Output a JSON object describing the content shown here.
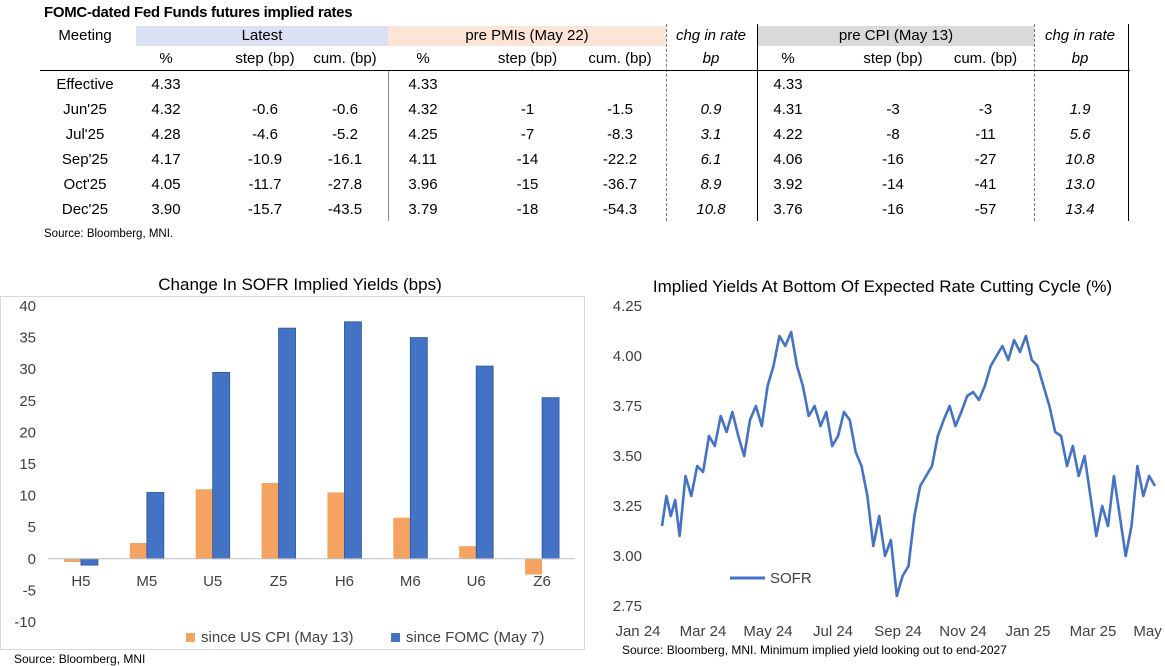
{
  "table": {
    "title": "FOMC-dated Fed Funds futures implied rates",
    "meeting_label": "Meeting",
    "groups": {
      "latest": "Latest",
      "pre_pmi": "pre PMIs (May 22)",
      "chg1": "chg in rate",
      "pre_cpi": "pre CPI (May 13)",
      "chg2": "chg in rate"
    },
    "subheaders": {
      "pct": "%",
      "step": "step (bp)",
      "cum": "cum. (bp)",
      "bp": "bp"
    },
    "rows": [
      {
        "meeting": "Effective",
        "l_pct": "4.33",
        "l_step": "",
        "l_cum": "",
        "p_pct": "4.33",
        "p_step": "",
        "p_cum": "",
        "chg1": "",
        "c_pct": "4.33",
        "c_step": "",
        "c_cum": "",
        "chg2": ""
      },
      {
        "meeting": "Jun'25",
        "l_pct": "4.32",
        "l_step": "-0.6",
        "l_cum": "-0.6",
        "p_pct": "4.32",
        "p_step": "-1",
        "p_cum": "-1.5",
        "chg1": "0.9",
        "c_pct": "4.31",
        "c_step": "-3",
        "c_cum": "-3",
        "chg2": "1.9"
      },
      {
        "meeting": "Jul'25",
        "l_pct": "4.28",
        "l_step": "-4.6",
        "l_cum": "-5.2",
        "p_pct": "4.25",
        "p_step": "-7",
        "p_cum": "-8.3",
        "chg1": "3.1",
        "c_pct": "4.22",
        "c_step": "-8",
        "c_cum": "-11",
        "chg2": "5.6"
      },
      {
        "meeting": "Sep'25",
        "l_pct": "4.17",
        "l_step": "-10.9",
        "l_cum": "-16.1",
        "p_pct": "4.11",
        "p_step": "-14",
        "p_cum": "-22.2",
        "chg1": "6.1",
        "c_pct": "4.06",
        "c_step": "-16",
        "c_cum": "-27",
        "chg2": "10.8"
      },
      {
        "meeting": "Oct'25",
        "l_pct": "4.05",
        "l_step": "-11.7",
        "l_cum": "-27.8",
        "p_pct": "3.96",
        "p_step": "-15",
        "p_cum": "-36.7",
        "chg1": "8.9",
        "c_pct": "3.92",
        "c_step": "-14",
        "c_cum": "-41",
        "chg2": "13.0"
      },
      {
        "meeting": "Dec'25",
        "l_pct": "3.90",
        "l_step": "-15.7",
        "l_cum": "-43.5",
        "p_pct": "3.79",
        "p_step": "-18",
        "p_cum": "-54.3",
        "chg1": "10.8",
        "c_pct": "3.76",
        "c_step": "-16",
        "c_cum": "-57",
        "chg2": "13.4"
      }
    ],
    "source": "Source: Bloomberg, MNI.",
    "colors": {
      "latest": "#d9e1f2",
      "pre_pmi": "#fce4d6",
      "pre_cpi": "#d9d9d9"
    }
  },
  "chart_data": [
    {
      "type": "bar",
      "title": "Change In SOFR Implied Yields (bps)",
      "categories": [
        "H5",
        "M5",
        "U5",
        "Z5",
        "H6",
        "M6",
        "U6",
        "Z6"
      ],
      "series": [
        {
          "name": "since US CPI (May 13)",
          "values": [
            -0.5,
            2.5,
            11,
            12,
            10.5,
            6.5,
            2,
            -2.5
          ],
          "color": "#f4a460"
        },
        {
          "name": "since FOMC (May 7)",
          "values": [
            -1,
            10.5,
            29.5,
            36.5,
            37.5,
            35,
            30.5,
            25.5
          ],
          "color": "#4472c4"
        }
      ],
      "ylim": [
        -10,
        40
      ],
      "yticks": [
        "-10",
        "-5",
        "0",
        "5",
        "10",
        "15",
        "20",
        "25",
        "30",
        "35",
        "40"
      ],
      "legend": "bottom",
      "source": "Source: Bloomberg, MNI"
    },
    {
      "type": "line",
      "title": "Implied Yields At Bottom Of Expected Rate Cutting Cycle (%)",
      "xlabels": [
        "Jan 24",
        "Mar 24",
        "May 24",
        "Jul 24",
        "Sep 24",
        "Nov 24",
        "Jan 25",
        "Mar 25",
        "May 25"
      ],
      "yticks": [
        "2.75",
        "3.00",
        "3.25",
        "3.50",
        "3.75",
        "4.00",
        "4.25"
      ],
      "ylim": [
        2.75,
        4.25
      ],
      "series": [
        {
          "name": "SOFR",
          "color": "#4472c4",
          "x": [
            0,
            0.15,
            0.3,
            0.45,
            0.6,
            0.8,
            1.0,
            1.2,
            1.4,
            1.6,
            1.8,
            2.0,
            2.2,
            2.4,
            2.6,
            2.8,
            3.0,
            3.2,
            3.4,
            3.6,
            3.8,
            4.0,
            4.2,
            4.4,
            4.6,
            4.8,
            5.0,
            5.2,
            5.4,
            5.6,
            5.8,
            6.0,
            6.2,
            6.4,
            6.6,
            6.8,
            7.0,
            7.2,
            7.4,
            7.6,
            7.8,
            8.0,
            8.2,
            8.4,
            8.6,
            8.8,
            9.0,
            9.2,
            9.4,
            9.6,
            9.8,
            10.0,
            10.2,
            10.4,
            10.6,
            10.8,
            11.0,
            11.2,
            11.4,
            11.6,
            11.8,
            12.0,
            12.2,
            12.4,
            12.6,
            12.8,
            13.0,
            13.2,
            13.4,
            13.6,
            13.8,
            14.0,
            14.2,
            14.4,
            14.6,
            14.8,
            15.0,
            15.2,
            15.4,
            15.6,
            15.8,
            16.0,
            16.2,
            16.4,
            16.6,
            16.8
          ],
          "y": [
            3.15,
            3.3,
            3.2,
            3.28,
            3.1,
            3.4,
            3.3,
            3.45,
            3.42,
            3.6,
            3.55,
            3.7,
            3.62,
            3.72,
            3.6,
            3.5,
            3.68,
            3.75,
            3.65,
            3.85,
            3.95,
            4.1,
            4.05,
            4.12,
            3.95,
            3.85,
            3.7,
            3.75,
            3.65,
            3.72,
            3.55,
            3.6,
            3.72,
            3.68,
            3.52,
            3.45,
            3.3,
            3.05,
            3.2,
            3.0,
            3.08,
            2.8,
            2.9,
            2.95,
            3.2,
            3.35,
            3.4,
            3.45,
            3.6,
            3.68,
            3.75,
            3.65,
            3.72,
            3.8,
            3.82,
            3.78,
            3.85,
            3.95,
            4.0,
            4.05,
            3.98,
            4.08,
            4.02,
            4.1,
            3.98,
            3.95,
            3.85,
            3.75,
            3.62,
            3.6,
            3.45,
            3.55,
            3.4,
            3.5,
            3.3,
            3.1,
            3.25,
            3.15,
            3.4,
            3.2,
            3.0,
            3.15,
            3.45,
            3.3,
            3.4,
            3.35
          ]
        }
      ],
      "legend": "bottom-left",
      "source": "Source: Bloomberg, MNI. Minimum implied yield looking out to end-2027"
    }
  ]
}
